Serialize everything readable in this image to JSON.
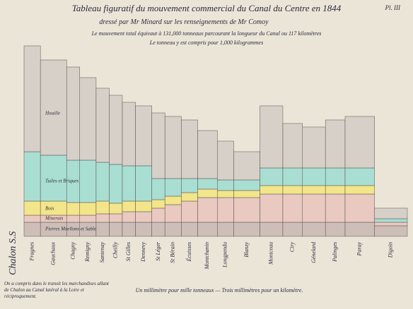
{
  "chart_data": {
    "type": "variable-width-stacked-bar",
    "plate": "Pl. III",
    "title": "Tableau figuratif du mouvement commercial du Canal du Centre en 1844",
    "subtitle": "dressé par Mr Minard sur les renseignements de Mr Comoy",
    "notes": [
      "Le mouvement total équivaut à 131,000 tonneaux parcourant la longueur du Canal ou 117 kilomètres",
      "Le tonneau y est compris pour 1,000 kilogrammes"
    ],
    "origin": "Chalon S.S",
    "footnote": "On a compris dans le transit les marchandises allant de Chalon au Canal latéral à la Loire et réciproquement.",
    "scale_note": "Un millimètre pour mille tonneaux — Trois millimètres pour un kilomètre.",
    "categories": [
      "Fragnes",
      "Gauchaux",
      "Chagny",
      "Remigny",
      "Santenay",
      "Cheilly",
      "St Gilles",
      "Dennevy",
      "St Léger",
      "St Bérain",
      "Écuisses",
      "Montchanin",
      "Longpendu",
      "Blanzy",
      "Montceau",
      "Ciry",
      "Génelard",
      "Palinges",
      "Paray",
      "Digoin"
    ],
    "lengths_km": [
      5,
      8,
      4,
      5,
      4,
      4,
      4,
      5,
      4,
      5,
      5,
      6,
      5,
      8,
      7,
      6,
      7,
      6,
      9,
      10
    ],
    "series": [
      {
        "name": "Pierres Moellons et Sable",
        "color": "#cdbfb8",
        "values": [
          20,
          20,
          20,
          20,
          20,
          20,
          20,
          20,
          20,
          20,
          20,
          20,
          20,
          20,
          20,
          20,
          20,
          20,
          20,
          15
        ]
      },
      {
        "name": "Minerais",
        "color": "#e9c9c0",
        "values": [
          10,
          10,
          10,
          10,
          12,
          12,
          15,
          15,
          20,
          25,
          30,
          35,
          35,
          35,
          40,
          40,
          40,
          40,
          40,
          5
        ]
      },
      {
        "name": "Bois",
        "color": "#f3e58a",
        "values": [
          20,
          20,
          18,
          18,
          18,
          15,
          15,
          15,
          12,
          12,
          12,
          12,
          10,
          10,
          12,
          12,
          12,
          12,
          12,
          0
        ]
      },
      {
        "name": "Tuiles et Briques",
        "color": "#a9ded3",
        "values": [
          70,
          65,
          60,
          60,
          55,
          55,
          50,
          50,
          30,
          25,
          20,
          15,
          15,
          15,
          25,
          25,
          25,
          25,
          25,
          5
        ]
      },
      {
        "name": "Houille",
        "color": "#d6d0c8",
        "values": [
          150,
          135,
          132,
          117,
          105,
          98,
          90,
          85,
          93,
          88,
          83,
          68,
          55,
          40,
          88,
          63,
          58,
          68,
          73,
          15
        ]
      }
    ],
    "ylim": [
      0,
      285
    ]
  }
}
